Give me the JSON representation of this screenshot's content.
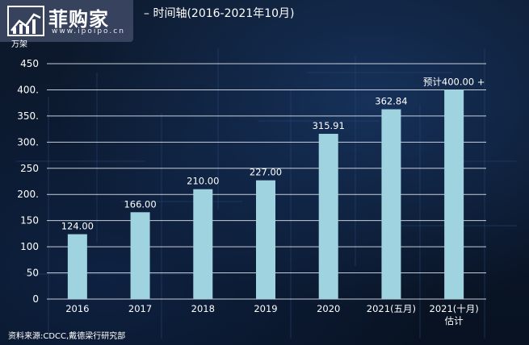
{
  "title": "– 时间轴(2016-2021年10月)",
  "logo": {
    "text": "菲购家",
    "url": "www.ipoipo.cn"
  },
  "unit": "万架",
  "source": "资料来源:CDCC,戴德梁行研究部",
  "chart_data": {
    "type": "bar",
    "categories": [
      "2016",
      "2017",
      "2018",
      "2019",
      "2020",
      "2021(五月)",
      "2021(十月)"
    ],
    "category_sublabels": [
      "",
      "",
      "",
      "",
      "",
      "",
      "估计"
    ],
    "values": [
      124.0,
      166.0,
      210.0,
      227.0,
      315.91,
      362.84,
      400.0
    ],
    "data_labels": [
      "124.00",
      "166.00",
      "210.00",
      "227.00",
      "315.91",
      "362.84",
      "预计400.00 +"
    ],
    "yticks": [
      "0",
      "50",
      "100",
      "150",
      "200.",
      "250",
      "300.",
      "350.",
      "400.",
      "450"
    ],
    "ylim": [
      0,
      450
    ],
    "grid": true,
    "bar_color": "#9fd3e0"
  }
}
